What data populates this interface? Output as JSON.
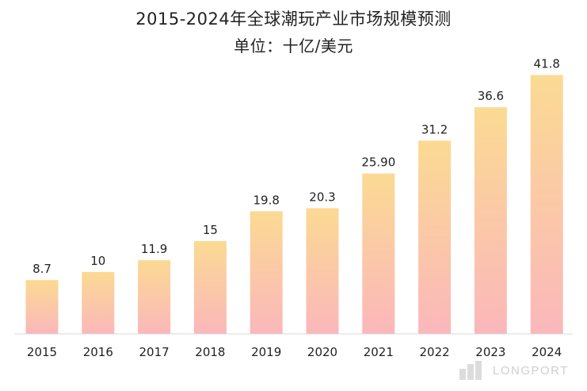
{
  "title": "2015-2024年全球潮玩产业市场规模预测",
  "subtitle": "单位：十亿/美元",
  "watermark": "LONGPORT",
  "colors": {
    "bar_top": "#FBDA93",
    "bar_bottom": "#FBB7BB",
    "text": "#222222",
    "axis": "#d8d8d8"
  },
  "chart_data": {
    "type": "bar",
    "title": "2015-2024年全球潮玩产业市场规模预测",
    "subtitle": "单位：十亿/美元",
    "xlabel": "",
    "ylabel": "",
    "categories": [
      "2015",
      "2016",
      "2017",
      "2018",
      "2019",
      "2020",
      "2021",
      "2022",
      "2023",
      "2024"
    ],
    "values": [
      8.7,
      10,
      11.9,
      15,
      19.8,
      20.3,
      25.9,
      31.2,
      36.6,
      41.8
    ],
    "labels": [
      "8.7",
      "10",
      "11.9",
      "15",
      "19.8",
      "20.3",
      "25.90",
      "31.2",
      "36.6",
      "41.8"
    ],
    "ylim": [
      0,
      42
    ],
    "grid": false,
    "legend": "none"
  }
}
